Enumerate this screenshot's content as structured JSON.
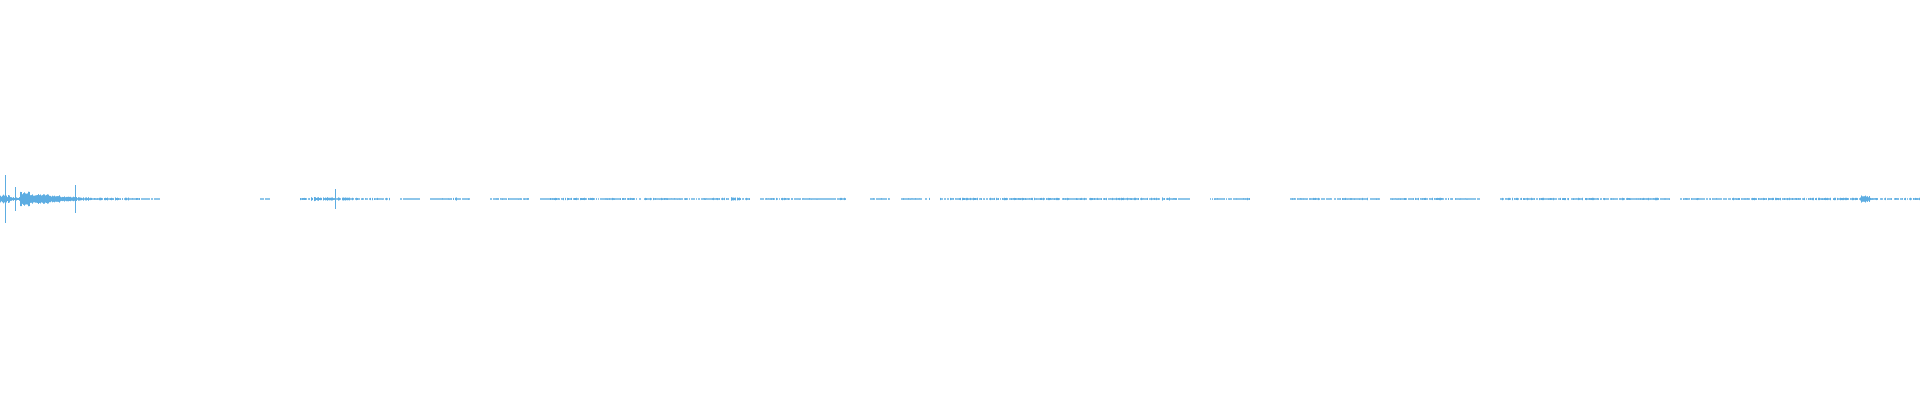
{
  "chart_data": {
    "type": "area",
    "title": "",
    "xlabel": "",
    "ylabel": "",
    "ylim": [
      -1,
      1
    ],
    "grid": false,
    "color": "#5dade2",
    "background": "#ffffff",
    "amplitude_envelope": [
      0.12,
      0.06,
      0.03,
      0.02,
      0.02,
      0.015,
      0.012,
      0.07,
      0.006,
      0.005,
      0.005,
      0.005,
      0.005,
      0.004,
      0.002,
      0.002,
      0,
      0,
      0,
      0,
      0,
      0,
      0,
      0,
      0,
      0,
      0.002,
      0,
      0,
      0,
      0.004,
      0.008,
      0.006,
      0.05,
      0.005,
      0.004,
      0.004,
      0.004,
      0.004,
      0,
      0.002,
      0.002,
      0,
      0.002,
      0.003,
      0.006,
      0.003,
      0,
      0,
      0.003,
      0.003,
      0.003,
      0.003,
      0,
      0.002,
      0.004,
      0.004,
      0.004,
      0.004,
      0.004,
      0.004,
      0.004,
      0.004,
      0.004,
      0.004,
      0.004,
      0.004,
      0.003,
      0.004,
      0.002,
      0.003,
      0.004,
      0.004,
      0.006,
      0.004,
      0,
      0.003,
      0.004,
      0.004,
      0.003,
      0.003,
      0.003,
      0.002,
      0.002,
      0.004,
      0,
      0,
      0.003,
      0.003,
      0,
      0.003,
      0.003,
      0.004,
      0,
      0.004,
      0.004,
      0.004,
      0.004,
      0.004,
      0.004,
      0.004,
      0.004,
      0.004,
      0.004,
      0.004,
      0.004,
      0.004,
      0.004,
      0.004,
      0.004,
      0.004,
      0.004,
      0.004,
      0.004,
      0.004,
      0.004,
      0.006,
      0.003,
      0.002,
      0,
      0,
      0.003,
      0.003,
      0.003,
      0.004,
      0,
      0,
      0,
      0,
      0.003,
      0.003,
      0.004,
      0.002,
      0.003,
      0.004,
      0.003,
      0.004,
      0.003,
      0,
      0.003,
      0.004,
      0.004,
      0.004,
      0.004,
      0.004,
      0.004,
      0.003,
      0.002,
      0,
      0,
      0.004,
      0.004,
      0.004,
      0.004,
      0.004,
      0.004,
      0.004,
      0.004,
      0.004,
      0.004,
      0.004,
      0.003,
      0.004,
      0.004,
      0.004,
      0.004,
      0.003,
      0,
      0.003,
      0.004,
      0.002,
      0.003,
      0.002,
      0.004,
      0.003,
      0.004,
      0.004,
      0.004,
      0.004,
      0.004,
      0.004,
      0.004,
      0.004,
      0.004,
      0.004,
      0.004,
      0.012,
      0.004,
      0.004,
      0.004,
      0.004,
      0.004
    ]
  }
}
